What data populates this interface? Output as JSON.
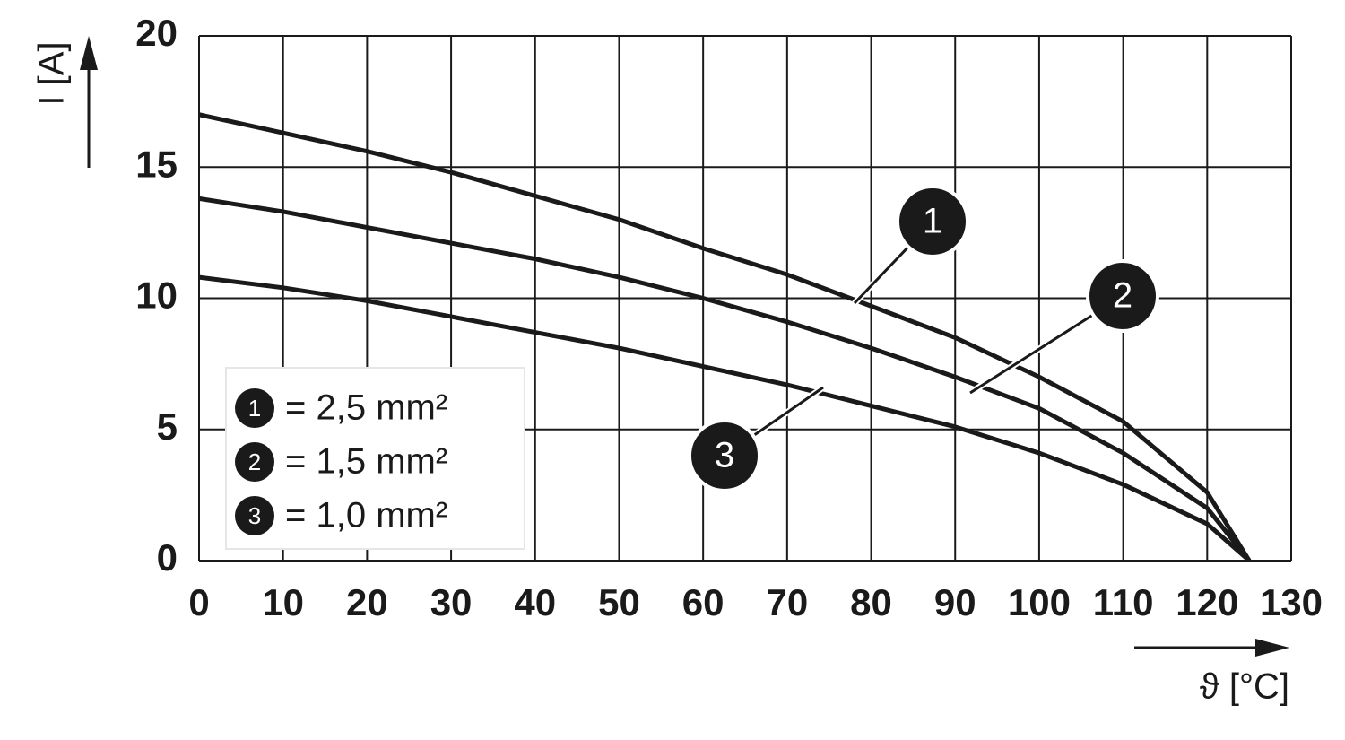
{
  "chart_data": {
    "type": "line",
    "x_label": "ϑ [°C]",
    "y_label": "I [A]",
    "x": [
      0,
      10,
      20,
      30,
      40,
      50,
      60,
      70,
      80,
      90,
      100,
      110,
      120,
      125
    ],
    "series": [
      {
        "name": "= 2,5 mm²",
        "label": "1",
        "color": "#1a1a1a",
        "values": [
          17.0,
          16.3,
          15.6,
          14.8,
          13.9,
          13.0,
          11.9,
          10.9,
          9.7,
          8.5,
          7.0,
          5.3,
          2.6,
          0
        ]
      },
      {
        "name": "= 1,5 mm²",
        "label": "2",
        "color": "#1a1a1a",
        "values": [
          13.8,
          13.3,
          12.7,
          12.1,
          11.5,
          10.8,
          10.0,
          9.1,
          8.1,
          7.0,
          5.8,
          4.1,
          2.0,
          0
        ]
      },
      {
        "name": "= 1,0 mm²",
        "label": "3",
        "color": "#1a1a1a",
        "values": [
          10.8,
          10.4,
          9.9,
          9.3,
          8.7,
          8.1,
          7.4,
          6.7,
          5.9,
          5.1,
          4.1,
          2.9,
          1.4,
          0
        ]
      }
    ],
    "xlim": [
      0,
      130
    ],
    "ylim": [
      0,
      20
    ],
    "xticks": [
      0,
      10,
      20,
      30,
      40,
      50,
      60,
      70,
      80,
      90,
      100,
      110,
      120,
      130
    ],
    "yticks": [
      0,
      5,
      10,
      15,
      20
    ],
    "grid": true
  }
}
